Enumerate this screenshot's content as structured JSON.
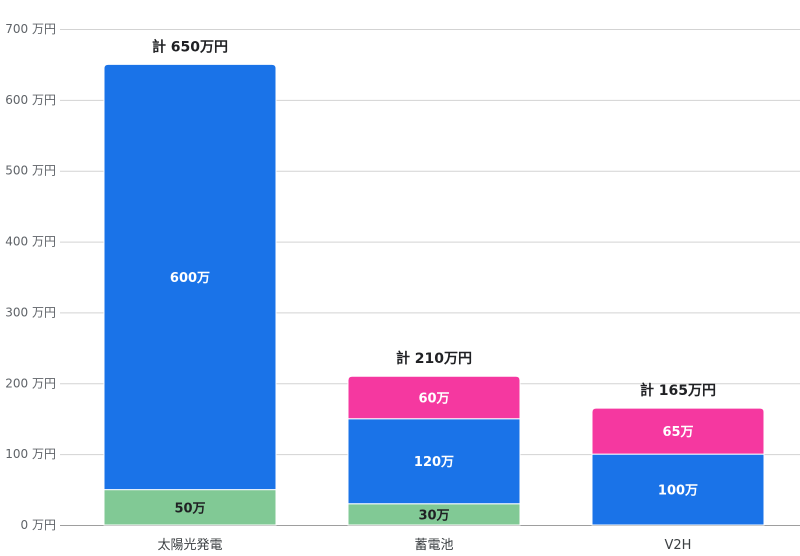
{
  "chart_data": {
    "type": "bar",
    "stacked": true,
    "categories": [
      "太陽光発電",
      "蓄電池",
      "V2H"
    ],
    "series": [
      {
        "key": "green",
        "values": [
          50,
          30,
          0
        ],
        "labels": [
          "50万",
          "30万",
          ""
        ],
        "color": "#81c995",
        "label_color": "#202124"
      },
      {
        "key": "blue",
        "values": [
          600,
          120,
          100
        ],
        "labels": [
          "600万",
          "120万",
          "100万"
        ],
        "color": "#1a73e8",
        "label_color": "#ffffff"
      },
      {
        "key": "pink",
        "values": [
          0,
          60,
          65
        ],
        "labels": [
          "",
          "60万",
          "65万"
        ],
        "color": "#f538a0",
        "label_color": "#ffffff"
      }
    ],
    "totals": [
      "計 650万円",
      "計 210万円",
      "計 165万円"
    ],
    "ylim": [
      0,
      700
    ],
    "y_ticks": [
      {
        "value": 0,
        "label": "0 万円"
      },
      {
        "value": 100,
        "label": "100 万円"
      },
      {
        "value": 200,
        "label": "200 万円"
      },
      {
        "value": 300,
        "label": "300 万円"
      },
      {
        "value": 400,
        "label": "400 万円"
      },
      {
        "value": 500,
        "label": "500 万円"
      },
      {
        "value": 600,
        "label": "600 万円"
      },
      {
        "value": 700,
        "label": "700 万円"
      }
    ],
    "grid": true,
    "legend": "none",
    "gridline_color": "#d3d3d3"
  }
}
